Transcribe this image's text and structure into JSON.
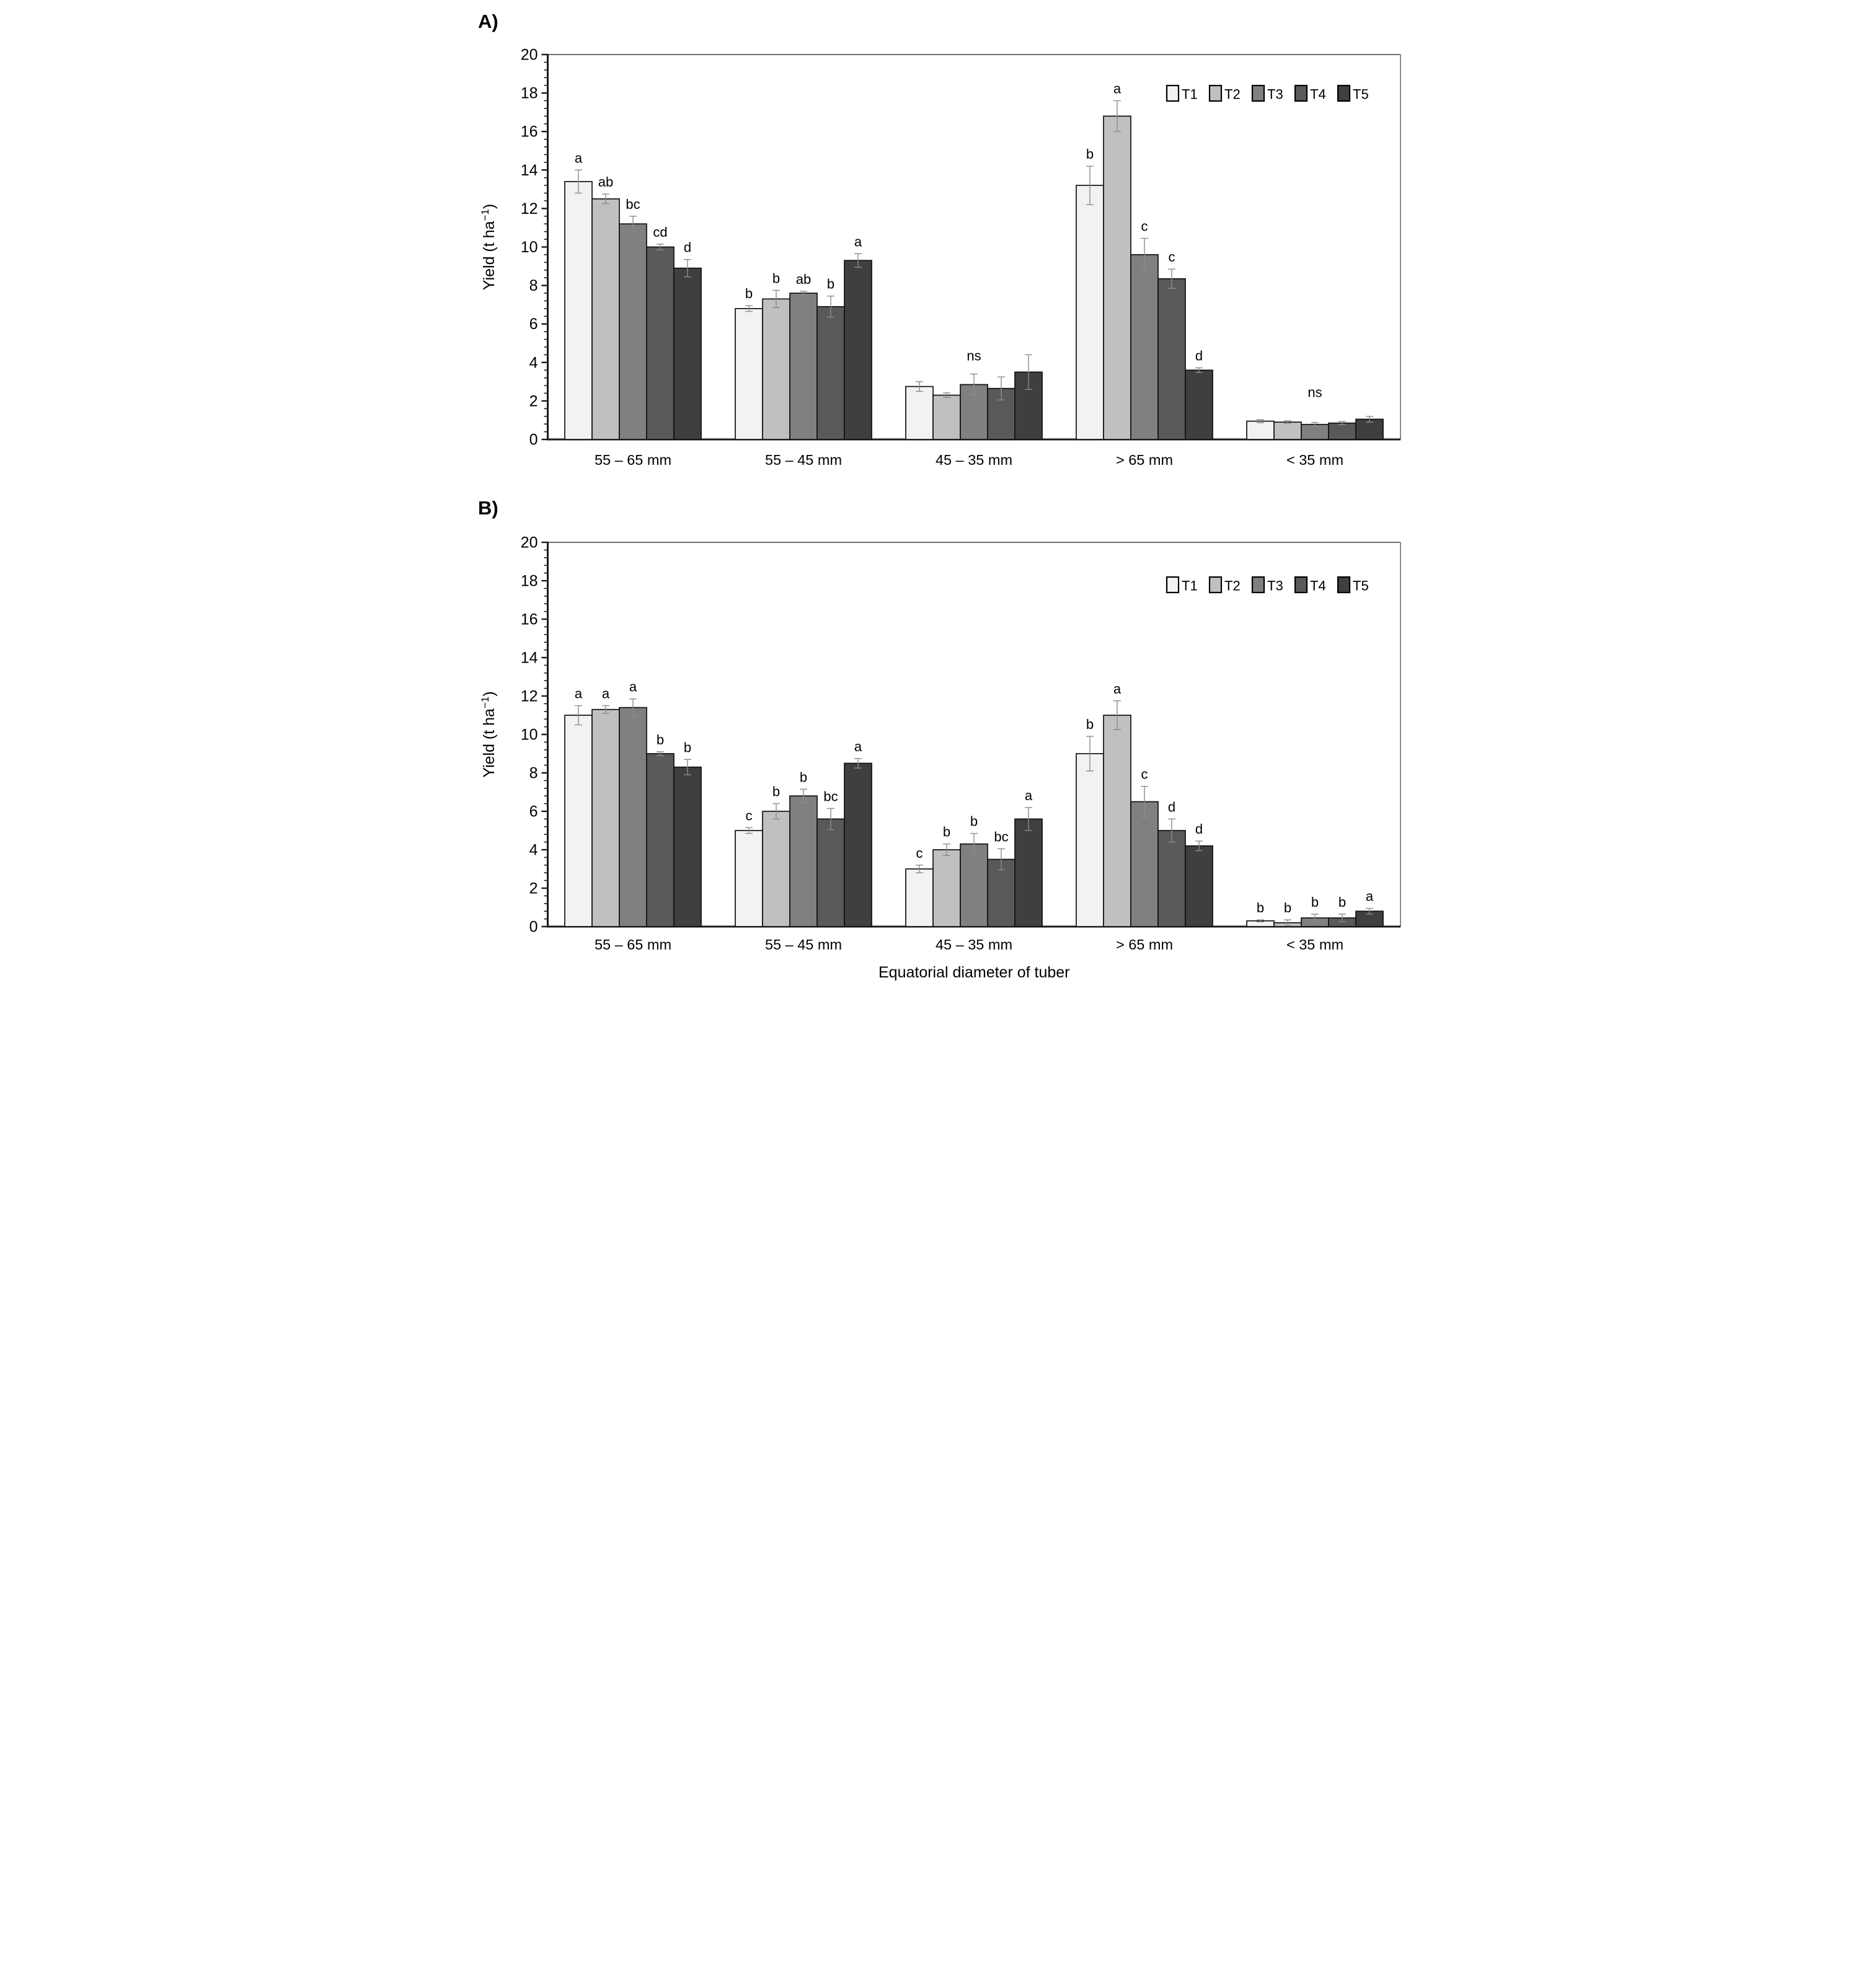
{
  "figure": {
    "x_axis_title": "Equatorial diameter of tuber",
    "y_axis_title": "Yield (t ha−1)",
    "panel_labels": [
      "A)",
      "B)"
    ]
  },
  "colors": {
    "T1": "#f2f2f2",
    "T2": "#c0c0c0",
    "T3": "#808080",
    "T4": "#595959",
    "T5": "#3f3f3f",
    "bar_stroke": "#111111",
    "error_bar": "#8c8c8c",
    "axis": "#1a1a1a",
    "frame": "#404040"
  },
  "chart_data": [
    {
      "type": "bar",
      "panel_label": "A)",
      "ylabel": {
        "prefix": "Yield  (t ha",
        "superscript": "−1",
        "suffix": ")"
      },
      "xlabel": "",
      "ylim": [
        0,
        20
      ],
      "ytick_major": 2,
      "ytick_minor": 0.4,
      "grid": "off",
      "legend_position": "top-right",
      "legend": [
        "T1",
        "T2",
        "T3",
        "T4",
        "T5"
      ],
      "categories": [
        "55 – 65 mm",
        "55 – 45 mm",
        "45 – 35 mm",
        "> 65 mm",
        "< 35 mm"
      ],
      "series": [
        {
          "name": "T1",
          "color": "#f2f2f2",
          "values": [
            13.4,
            6.8,
            2.75,
            13.2,
            0.95
          ],
          "errors": [
            0.6,
            0.15,
            0.25,
            1.0,
            0.08
          ]
        },
        {
          "name": "T2",
          "color": "#c0c0c0",
          "values": [
            12.5,
            7.3,
            2.3,
            16.8,
            0.9
          ],
          "errors": [
            0.25,
            0.45,
            0.12,
            0.8,
            0.07
          ]
        },
        {
          "name": "T3",
          "color": "#808080",
          "values": [
            11.2,
            7.6,
            2.85,
            9.6,
            0.78
          ],
          "errors": [
            0.4,
            0.1,
            0.55,
            0.85,
            0.1
          ]
        },
        {
          "name": "T4",
          "color": "#595959",
          "values": [
            10.0,
            6.9,
            2.65,
            8.35,
            0.85
          ],
          "errors": [
            0.15,
            0.55,
            0.6,
            0.5,
            0.08
          ]
        },
        {
          "name": "T5",
          "color": "#3f3f3f",
          "values": [
            8.9,
            9.3,
            3.5,
            3.6,
            1.05
          ],
          "errors": [
            0.45,
            0.35,
            0.9,
            0.12,
            0.15
          ]
        }
      ],
      "letters": [
        [
          "a",
          "ab",
          "bc",
          "cd",
          "d"
        ],
        [
          "b",
          "b",
          "ab",
          "b",
          "a"
        ],
        {
          "text": "ns",
          "y": 4.1
        },
        [
          "b",
          "a",
          "c",
          "c",
          "d"
        ],
        {
          "text": "ns",
          "y": 2.2
        }
      ]
    },
    {
      "type": "bar",
      "panel_label": "B)",
      "ylabel": {
        "prefix": "Yield  (t ha",
        "superscript": "−1",
        "suffix": ")"
      },
      "xlabel": "Equatorial diameter of tuber",
      "ylim": [
        0,
        20
      ],
      "ytick_major": 2,
      "ytick_minor": 0.4,
      "grid": "off",
      "legend_position": "top-right",
      "legend": [
        "T1",
        "T2",
        "T3",
        "T4",
        "T5"
      ],
      "categories": [
        "55 – 65 mm",
        "55 – 45 mm",
        "45 – 35 mm",
        "> 65 mm",
        "< 35 mm"
      ],
      "series": [
        {
          "name": "T1",
          "color": "#f2f2f2",
          "values": [
            11.0,
            5.0,
            3.0,
            9.0,
            0.3
          ],
          "errors": [
            0.5,
            0.15,
            0.2,
            0.9,
            0.05
          ]
        },
        {
          "name": "T2",
          "color": "#c0c0c0",
          "values": [
            11.3,
            6.0,
            4.0,
            11.0,
            0.2
          ],
          "errors": [
            0.2,
            0.4,
            0.3,
            0.75,
            0.15
          ]
        },
        {
          "name": "T3",
          "color": "#808080",
          "values": [
            11.4,
            6.8,
            4.3,
            6.5,
            0.45
          ],
          "errors": [
            0.45,
            0.35,
            0.55,
            0.8,
            0.2
          ]
        },
        {
          "name": "T4",
          "color": "#595959",
          "values": [
            9.0,
            5.6,
            3.5,
            5.0,
            0.45
          ],
          "errors": [
            0.1,
            0.55,
            0.55,
            0.6,
            0.2
          ]
        },
        {
          "name": "T5",
          "color": "#3f3f3f",
          "values": [
            8.3,
            8.5,
            5.6,
            4.2,
            0.8
          ],
          "errors": [
            0.4,
            0.25,
            0.6,
            0.25,
            0.15
          ]
        }
      ],
      "letters": [
        [
          "a",
          "a",
          "a",
          "b",
          "b"
        ],
        [
          "c",
          "b",
          "b",
          "bc",
          "a"
        ],
        [
          "c",
          "b",
          "b",
          "bc",
          "a"
        ],
        [
          "b",
          "a",
          "c",
          "d",
          "d"
        ],
        [
          "b",
          "b",
          "b",
          "b",
          "a"
        ]
      ]
    }
  ]
}
